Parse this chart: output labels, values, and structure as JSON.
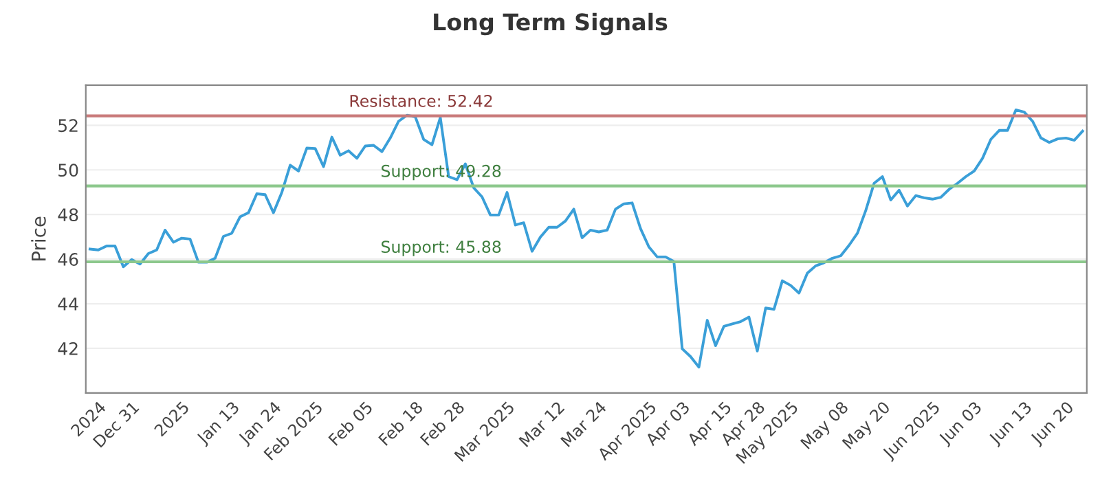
{
  "chart_data": {
    "type": "line",
    "title": "Long Term Signals",
    "ylabel": "Price",
    "categories": [
      null,
      "2024",
      null,
      null,
      null,
      "Dec 31",
      null,
      null,
      null,
      null,
      null,
      "2025",
      null,
      null,
      null,
      null,
      null,
      "Jan 13",
      null,
      null,
      null,
      null,
      "Jan 24",
      null,
      null,
      null,
      null,
      "Feb 2025",
      null,
      null,
      null,
      null,
      null,
      "Feb 05",
      null,
      null,
      null,
      null,
      null,
      "Feb 18",
      null,
      null,
      null,
      null,
      "Feb 28",
      null,
      null,
      null,
      null,
      null,
      "Mar 2025",
      null,
      null,
      null,
      null,
      null,
      "Mar 12",
      null,
      null,
      null,
      null,
      "Mar 24",
      null,
      null,
      null,
      null,
      null,
      "Apr 2025",
      null,
      null,
      null,
      "Apr 03",
      null,
      null,
      null,
      null,
      "Apr 15",
      null,
      null,
      null,
      "Apr 28",
      null,
      null,
      null,
      "May 2025",
      null,
      null,
      null,
      null,
      null,
      "May 08",
      null,
      null,
      null,
      null,
      "May 20",
      null,
      null,
      null,
      null,
      null,
      "Jun 2025",
      null,
      null,
      null,
      null,
      "Jun 03",
      null,
      null,
      null,
      null,
      null,
      "Jun 13",
      null,
      null,
      null,
      null,
      "Jun 20",
      null,
      null
    ],
    "series": [
      {
        "color": "#3a9fd8",
        "values": [
          46.45,
          46.41,
          46.59,
          46.59,
          45.66,
          45.98,
          45.78,
          46.25,
          46.41,
          47.3,
          46.76,
          46.94,
          46.9,
          45.86,
          45.86,
          46.04,
          47.02,
          47.16,
          47.9,
          48.08,
          48.93,
          48.89,
          48.08,
          48.99,
          50.21,
          49.95,
          50.98,
          50.96,
          50.15,
          51.47,
          50.66,
          50.86,
          50.52,
          51.07,
          51.1,
          50.82,
          51.43,
          52.18,
          52.45,
          52.38,
          51.37,
          51.13,
          52.35,
          49.7,
          49.56,
          50.27,
          49.2,
          48.79,
          47.98,
          47.98,
          48.99,
          47.53,
          47.63,
          46.35,
          46.99,
          47.43,
          47.43,
          47.71,
          48.24,
          46.96,
          47.3,
          47.22,
          47.3,
          48.24,
          48.48,
          48.52,
          47.37,
          46.55,
          46.1,
          46.1,
          45.9,
          41.98,
          41.63,
          41.16,
          43.26,
          42.12,
          42.99,
          43.1,
          43.2,
          43.4,
          41.88,
          43.81,
          43.75,
          45.03,
          44.82,
          44.48,
          45.37,
          45.7,
          45.84,
          46.04,
          46.15,
          46.62,
          47.16,
          48.18,
          49.4,
          49.7,
          48.65,
          49.09,
          48.38,
          48.85,
          48.75,
          48.69,
          48.77,
          49.13,
          49.4,
          49.7,
          49.95,
          50.52,
          51.37,
          51.77,
          51.77,
          52.69,
          52.59,
          52.18,
          51.43,
          51.23,
          51.39,
          51.43,
          51.33,
          51.74
        ]
      }
    ],
    "ylim": [
      40,
      53.8
    ],
    "yticks": [
      42,
      44,
      46,
      48,
      50,
      52
    ],
    "grid": "y",
    "ref_lines": [
      {
        "axis": "y",
        "value": 52.42,
        "label": "Resistance: 52.42",
        "color": "#c97a7a"
      },
      {
        "axis": "y",
        "value": 49.28,
        "label": "Support: 49.28",
        "color": "#8cc88c"
      },
      {
        "axis": "y",
        "value": 45.88,
        "label": "Support: 45.88",
        "color": "#8cc88c"
      }
    ]
  }
}
